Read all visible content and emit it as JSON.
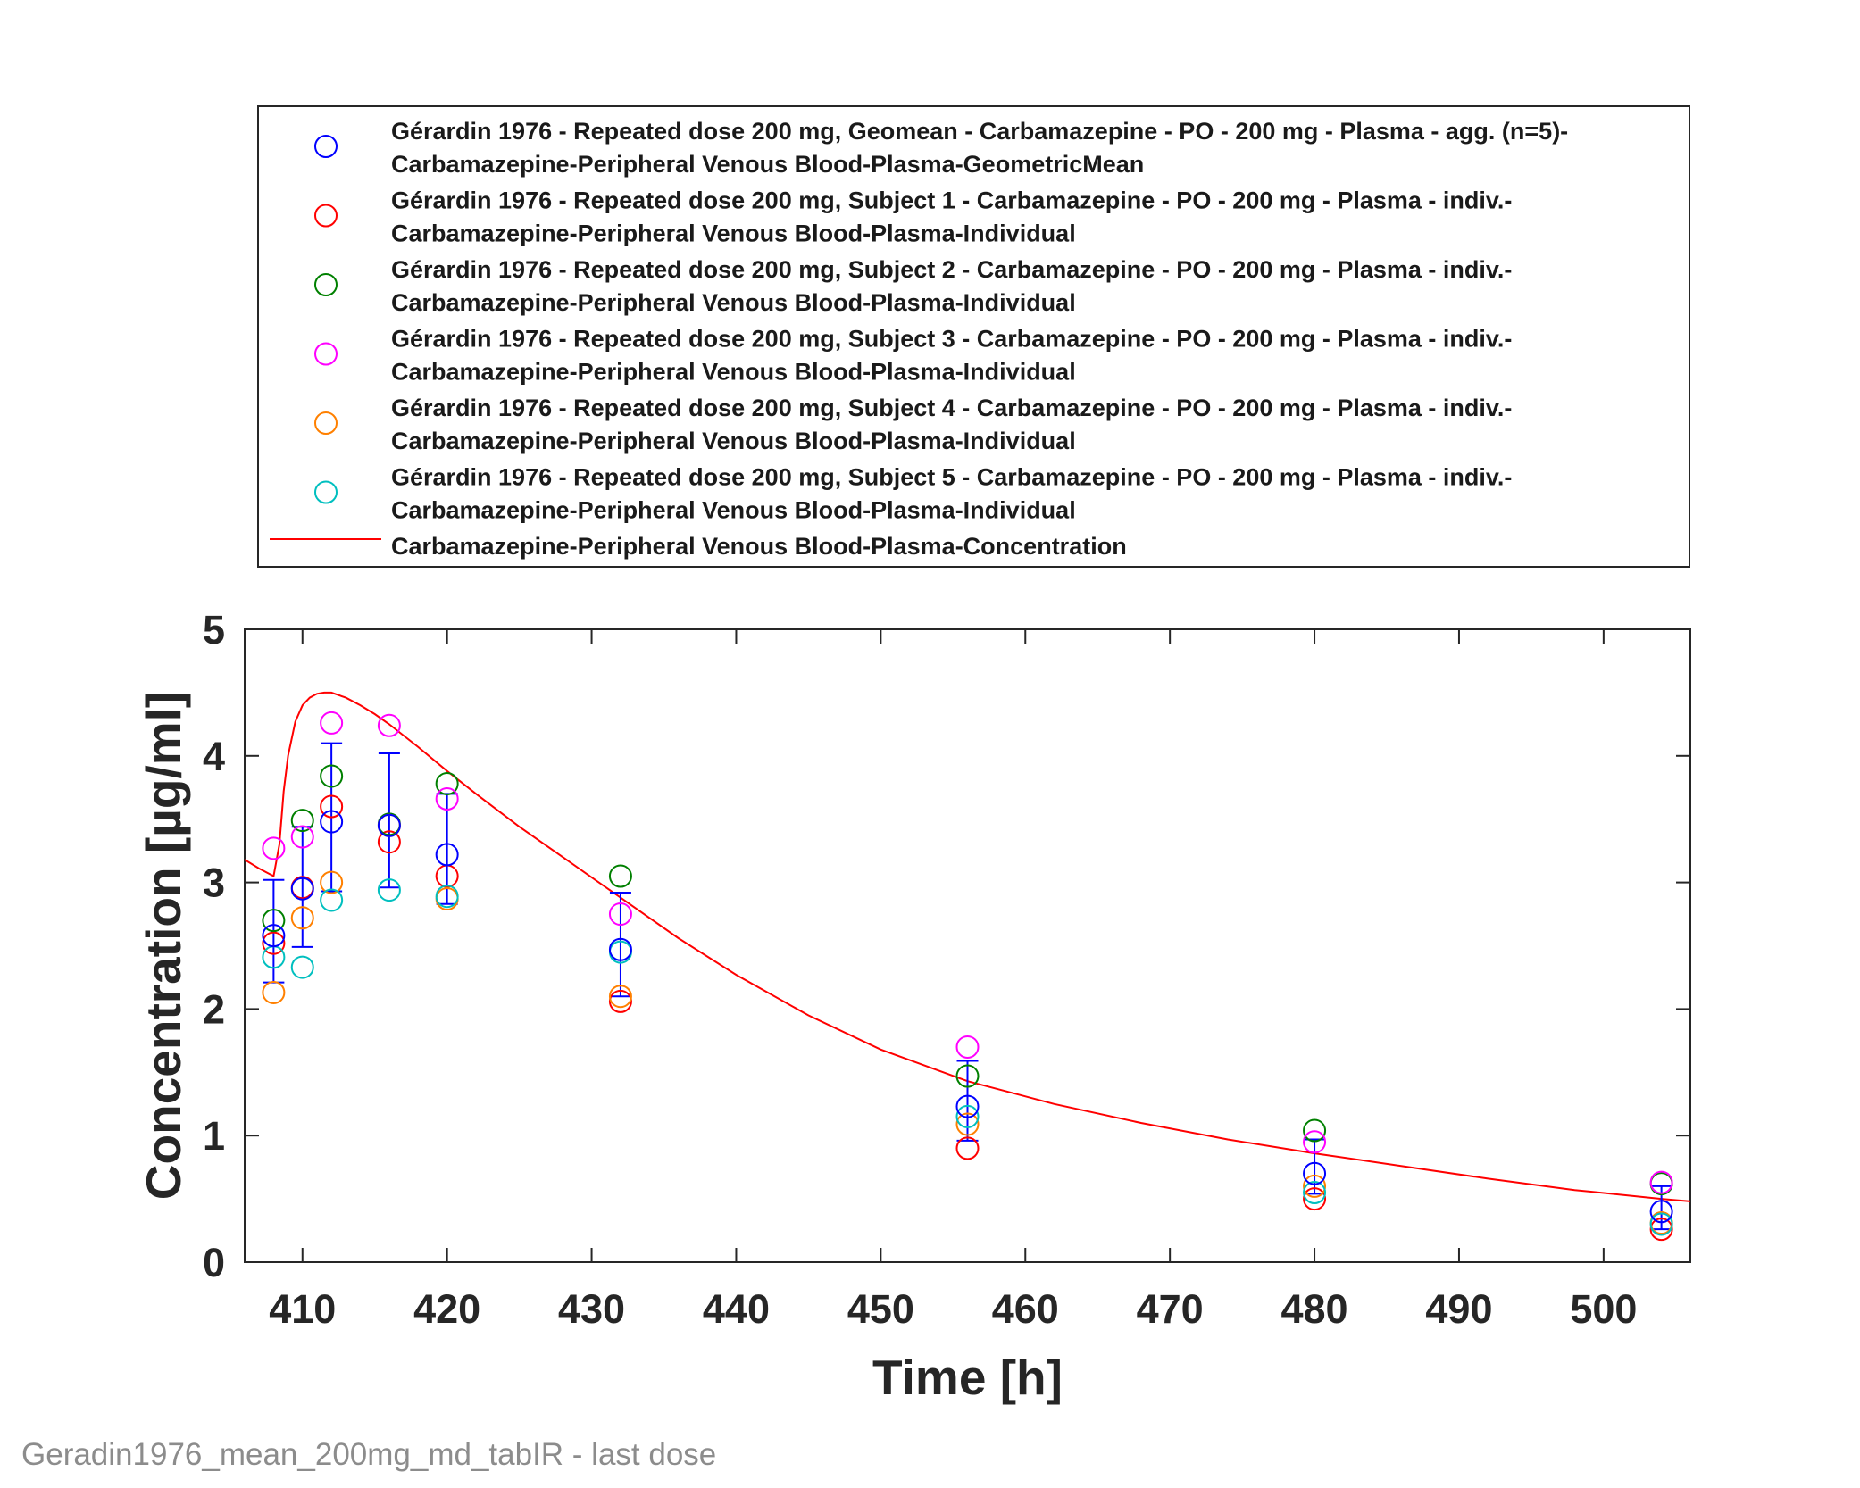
{
  "caption": "Geradin1976_mean_200mg_md_tabIR - last dose",
  "chart_data": {
    "type": "scatter",
    "xlabel": "Time [h]",
    "ylabel": "Concentration [µg/ml]",
    "xlim": [
      406,
      506
    ],
    "ylim": [
      0,
      5
    ],
    "xticks": [
      410,
      420,
      430,
      440,
      450,
      460,
      470,
      480,
      490,
      500
    ],
    "yticks": [
      0,
      1,
      2,
      3,
      4,
      5
    ],
    "grid": false,
    "legend_placement": "above plot",
    "series": [
      {
        "name": "Gérardin 1976 - Repeated dose 200 mg, Geomean - Carbamazepine - PO - 200 mg - Plasma - agg. (n=5)-Carbamazepine-Peripheral Venous Blood-Plasma-GeometricMean",
        "legend_lines": [
          "Gérardin 1976 - Repeated dose 200 mg, Geomean - Carbamazepine - PO - 200 mg - Plasma - agg. (n=5)-",
          "Carbamazepine-Peripheral Venous Blood-Plasma-GeometricMean"
        ],
        "marker": "circle",
        "color": "#0000ff",
        "x": [
          408,
          410,
          412,
          416,
          420,
          432,
          456,
          480,
          504
        ],
        "y": [
          2.58,
          2.95,
          3.48,
          3.45,
          3.22,
          2.47,
          1.23,
          0.7,
          0.4
        ],
        "error_lower": [
          2.21,
          2.49,
          2.93,
          2.96,
          2.83,
          2.1,
          0.96,
          0.54,
          0.26
        ],
        "error_upper": [
          3.02,
          3.44,
          4.1,
          4.02,
          3.7,
          2.92,
          1.59,
          0.97,
          0.6
        ]
      },
      {
        "name": "Gérardin 1976 - Repeated dose 200 mg, Subject 1 - Carbamazepine - PO - 200 mg - Plasma - indiv.-Carbamazepine-Peripheral Venous Blood-Plasma-Individual",
        "legend_lines": [
          "Gérardin 1976 - Repeated dose 200 mg, Subject 1 - Carbamazepine - PO - 200 mg - Plasma - indiv.-",
          "Carbamazepine-Peripheral Venous Blood-Plasma-Individual"
        ],
        "marker": "circle",
        "color": "#ff0000",
        "x": [
          408,
          410,
          412,
          416,
          420,
          432,
          456,
          480,
          504
        ],
        "y": [
          2.52,
          2.96,
          3.6,
          3.32,
          3.05,
          2.06,
          0.9,
          0.5,
          0.26
        ]
      },
      {
        "name": "Gérardin 1976 - Repeated dose 200 mg, Subject 2 - Carbamazepine - PO - 200 mg - Plasma - indiv.-Carbamazepine-Peripheral Venous Blood-Plasma-Individual",
        "legend_lines": [
          "Gérardin 1976 - Repeated dose 200 mg, Subject 2 - Carbamazepine - PO - 200 mg - Plasma - indiv.-",
          "Carbamazepine-Peripheral Venous Blood-Plasma-Individual"
        ],
        "marker": "circle",
        "color": "#008000",
        "x": [
          408,
          410,
          412,
          416,
          420,
          432,
          456,
          480,
          504
        ],
        "y": [
          2.7,
          3.49,
          3.84,
          3.46,
          3.78,
          3.05,
          1.47,
          1.04,
          0.62
        ]
      },
      {
        "name": "Gérardin 1976 - Repeated dose 200 mg, Subject 3 - Carbamazepine - PO - 200 mg - Plasma - indiv.-Carbamazepine-Peripheral Venous Blood-Plasma-Individual",
        "legend_lines": [
          "Gérardin 1976 - Repeated dose 200 mg, Subject 3 - Carbamazepine - PO - 200 mg - Plasma - indiv.-",
          "Carbamazepine-Peripheral Venous Blood-Plasma-Individual"
        ],
        "marker": "circle",
        "color": "#ff00ff",
        "x": [
          408,
          410,
          412,
          416,
          420,
          432,
          456,
          480,
          504
        ],
        "y": [
          3.27,
          3.36,
          4.26,
          4.24,
          3.66,
          2.75,
          1.7,
          0.95,
          0.63
        ]
      },
      {
        "name": "Gérardin 1976 - Repeated dose 200 mg, Subject 4 - Carbamazepine - PO - 200 mg - Plasma - indiv.-Carbamazepine-Peripheral Venous Blood-Plasma-Individual",
        "legend_lines": [
          "Gérardin 1976 - Repeated dose 200 mg, Subject 4 - Carbamazepine - PO - 200 mg - Plasma - indiv.-",
          "Carbamazepine-Peripheral Venous Blood-Plasma-Individual"
        ],
        "marker": "circle",
        "color": "#ff8000",
        "x": [
          408,
          410,
          412,
          416,
          420,
          432,
          456,
          480,
          504
        ],
        "y": [
          2.13,
          2.72,
          3.0,
          3.45,
          2.87,
          2.1,
          1.09,
          0.6,
          0.31
        ]
      },
      {
        "name": "Gérardin 1976 - Repeated dose 200 mg, Subject 5 - Carbamazepine - PO - 200 mg - Plasma - indiv.-Carbamazepine-Peripheral Venous Blood-Plasma-Individual",
        "legend_lines": [
          "Gérardin 1976 - Repeated dose 200 mg, Subject 5 - Carbamazepine - PO - 200 mg - Plasma - indiv.-",
          "Carbamazepine-Peripheral Venous Blood-Plasma-Individual"
        ],
        "marker": "circle",
        "color": "#00bfbf",
        "x": [
          408,
          410,
          412,
          416,
          420,
          432,
          456,
          480,
          504
        ],
        "y": [
          2.41,
          2.33,
          2.86,
          2.94,
          2.89,
          2.45,
          1.15,
          0.55,
          0.3
        ]
      },
      {
        "name": "Carbamazepine-Peripheral Venous Blood-Plasma-Concentration",
        "legend_lines": [
          "Carbamazepine-Peripheral Venous Blood-Plasma-Concentration"
        ],
        "marker": "line",
        "color": "#ff0000",
        "x": [
          406,
          407,
          408,
          408.4,
          408.7,
          409,
          409.5,
          410,
          410.5,
          411,
          411.5,
          412,
          413,
          414,
          415,
          416,
          418,
          420,
          422,
          425,
          428,
          432,
          436,
          440,
          445,
          450,
          456,
          462,
          468,
          474,
          480,
          486,
          492,
          498,
          504,
          506
        ],
        "y": [
          3.18,
          3.11,
          3.05,
          3.3,
          3.72,
          4.0,
          4.27,
          4.4,
          4.46,
          4.49,
          4.5,
          4.5,
          4.46,
          4.4,
          4.33,
          4.25,
          4.07,
          3.88,
          3.7,
          3.44,
          3.2,
          2.88,
          2.56,
          2.27,
          1.95,
          1.68,
          1.43,
          1.25,
          1.1,
          0.97,
          0.86,
          0.76,
          0.66,
          0.57,
          0.5,
          0.48
        ]
      }
    ]
  }
}
